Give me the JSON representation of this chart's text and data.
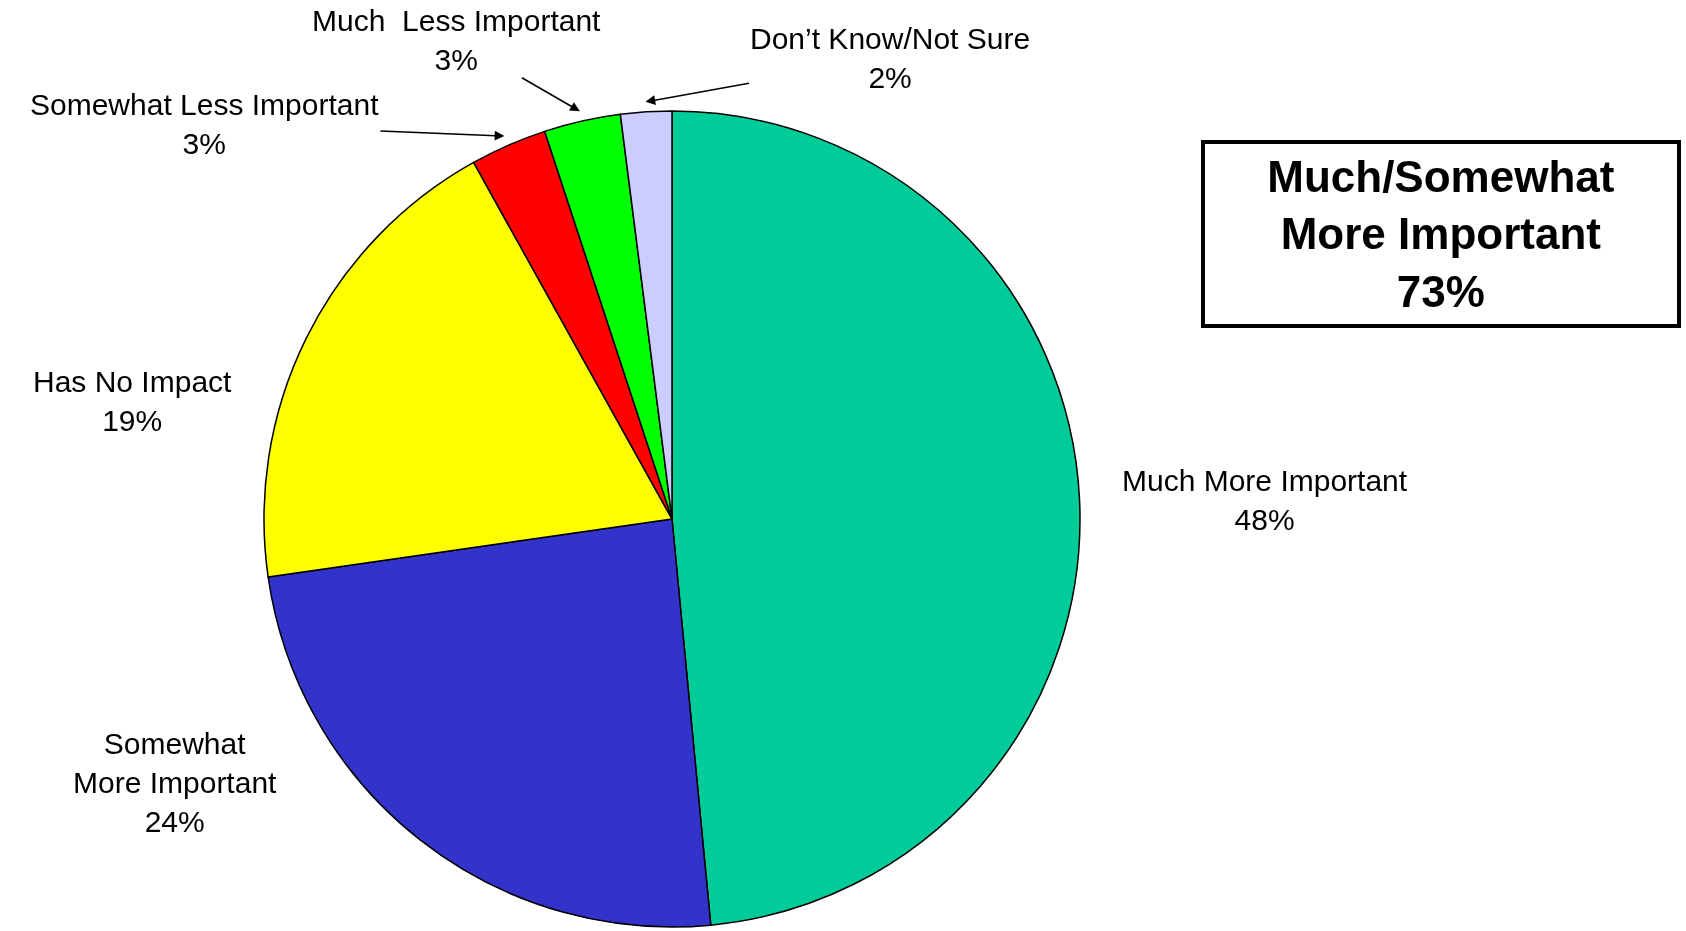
{
  "chart_data": {
    "type": "pie",
    "categories": [
      "Much More Important",
      "Somewhat\nMore Important",
      "Has No Impact",
      "Somewhat Less Important",
      "Much  Less Important",
      "Don’t Know/Not Sure"
    ],
    "values": [
      48,
      24,
      19,
      3,
      3,
      2
    ],
    "value_labels": [
      "48%",
      "24%",
      "19%",
      "3%",
      "3%",
      "2%"
    ],
    "colors": [
      "#00cc99",
      "#3333cc",
      "#ffff00",
      "#ff0000",
      "#00ff00",
      "#ccccff"
    ],
    "annotations": [
      "Much/Somewhat\nMore Important\n73%"
    ]
  }
}
